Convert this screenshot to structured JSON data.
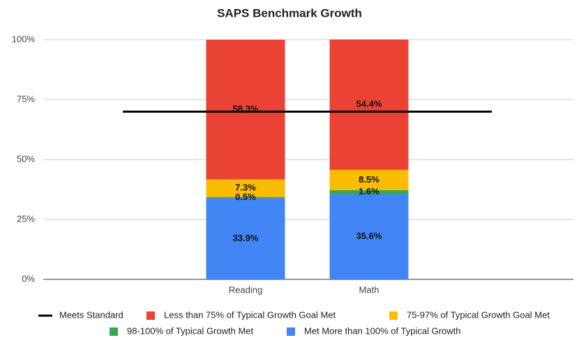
{
  "chart_data": {
    "type": "bar",
    "stacked": true,
    "title": "SAPS  Benchmark Growth",
    "categories": [
      "Reading",
      "Math"
    ],
    "series": [
      {
        "name": "Less than 75% of Typical Growth Goal Met",
        "color": "#ea4335",
        "values": [
          58.3,
          54.4
        ],
        "value_labels": [
          "58.3%",
          "54.4%"
        ]
      },
      {
        "name": "75-97% of Typical Growth Goal Met",
        "color": "#fbbc04",
        "values": [
          7.3,
          8.5
        ],
        "value_labels": [
          "7.3%",
          "8.5%"
        ]
      },
      {
        "name": "98-100% of Typical Growth Met",
        "color": "#34a853",
        "values": [
          0.5,
          1.6
        ],
        "value_labels": [
          "0.5%",
          "1.6%"
        ]
      },
      {
        "name": "Met More than 100% of Typical Growth",
        "color": "#4285f4",
        "values": [
          33.9,
          35.6
        ],
        "value_labels": [
          "33.9%",
          "35.6%"
        ]
      }
    ],
    "reference_line": {
      "name": "Meets Standard",
      "value": 70,
      "color": "#000000"
    },
    "ylim": [
      0,
      100
    ],
    "yticks": [
      {
        "value": 0,
        "label": "0%"
      },
      {
        "value": 25,
        "label": "25%"
      },
      {
        "value": 50,
        "label": "50%"
      },
      {
        "value": 75,
        "label": "75%"
      },
      {
        "value": 100,
        "label": "100%"
      }
    ],
    "grid": true
  }
}
